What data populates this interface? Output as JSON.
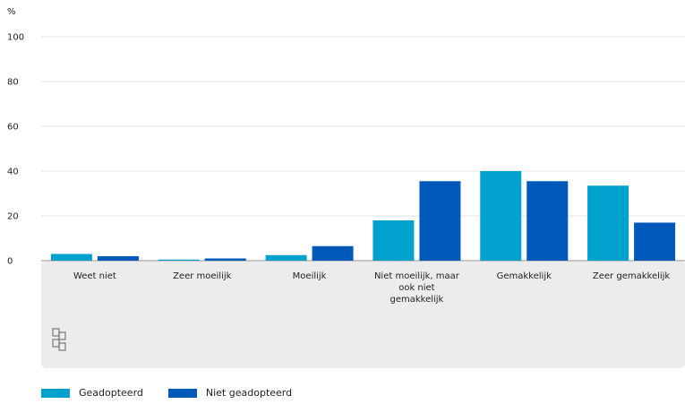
{
  "chart_data": {
    "type": "bar",
    "y_unit": "%",
    "ylim": [
      0,
      100
    ],
    "y_ticks": [
      0,
      20,
      40,
      60,
      80,
      100
    ],
    "grid": true,
    "legend_position": "bottom-left",
    "categories": [
      [
        "Weet niet"
      ],
      [
        "Zeer moeilijk"
      ],
      [
        "Moeilijk"
      ],
      [
        "Niet moeilijk, maar",
        "ook niet",
        "gemakkelijk"
      ],
      [
        "Gemakkelijk"
      ],
      [
        "Zeer gemakkelijk"
      ]
    ],
    "series": [
      {
        "name": "Geadopteerd",
        "color": "#00a1cd",
        "values": [
          3,
          0.5,
          2.5,
          18,
          40,
          33.5
        ]
      },
      {
        "name": "Niet geadopteerd",
        "color": "#0058b8",
        "values": [
          2,
          1,
          6.5,
          35.5,
          35.5,
          17
        ]
      }
    ]
  }
}
